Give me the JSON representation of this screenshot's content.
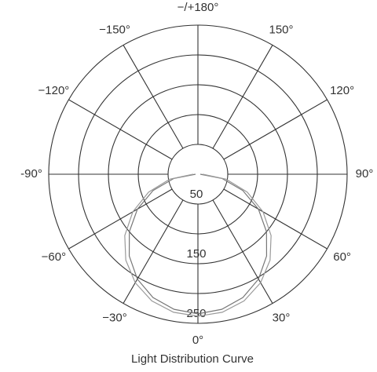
{
  "chart_data": {
    "type": "polar",
    "title": "Light Distribution Curve",
    "rlim": [
      0,
      250
    ],
    "rticks": [
      50,
      {
        "value": 100,
        "label": null
      },
      150,
      {
        "value": 200,
        "label": null
      },
      250
    ],
    "thetaticks": [
      {
        "value": 0,
        "label": "0°"
      },
      {
        "value": 30,
        "label": "30°"
      },
      {
        "value": 60,
        "label": "60°"
      },
      {
        "value": 90,
        "label": "90°"
      },
      {
        "value": 120,
        "label": "120°"
      },
      {
        "value": 150,
        "label": "150°"
      },
      {
        "value": 180,
        "label": "−/+180°"
      },
      {
        "value": -150,
        "label": "−150°"
      },
      {
        "value": -120,
        "label": "−120°"
      },
      {
        "value": -90,
        "label": "-90°"
      },
      {
        "value": -60,
        "label": "−60°"
      },
      {
        "value": -30,
        "label": "−30°"
      }
    ],
    "theta": [
      -90,
      -80,
      -70,
      -60,
      -50,
      -40,
      -30,
      -20,
      -10,
      0,
      10,
      20,
      30,
      40,
      50,
      60,
      70,
      80,
      90
    ],
    "series": [
      {
        "color": "#777777",
        "values": [
          4,
          41,
          80,
          117,
          150,
          179,
          203,
          220,
          230,
          234,
          230,
          220,
          203,
          179,
          150,
          117,
          80,
          41,
          4
        ]
      },
      {
        "color": "#9a9a9a",
        "values": [
          8,
          48,
          88,
          126,
          160,
          188,
          210,
          226,
          235,
          238,
          235,
          226,
          210,
          188,
          160,
          126,
          88,
          48,
          8
        ]
      }
    ],
    "grid": true
  }
}
